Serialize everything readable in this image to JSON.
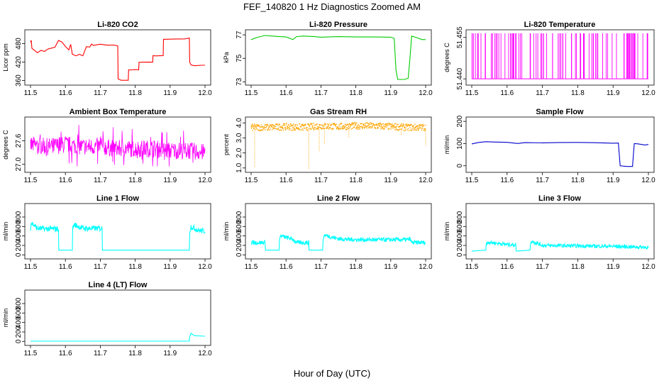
{
  "figure": {
    "title": "FEF_140820  1 Hz Diagnostics Zoomed AM",
    "xlabel": "Hour of Day (UTC)"
  },
  "chart_data": [
    {
      "type": "line",
      "title": "Li-820 CO2",
      "ylabel": "Licor ppm",
      "color": "#ff0000",
      "xlim": [
        11.5,
        12.0
      ],
      "ylim": [
        352,
        518
      ],
      "xticks": [
        "11.5",
        "11.6",
        "11.7",
        "11.8",
        "11.9",
        "12.0"
      ],
      "yticks": [
        {
          "v": 360,
          "label": "360"
        },
        {
          "v": 420,
          "label": "420"
        },
        {
          "v": 480,
          "label": "480"
        }
      ],
      "x": [
        11.5,
        11.502,
        11.504,
        11.51,
        11.52,
        11.53,
        11.54,
        11.55,
        11.56,
        11.57,
        11.58,
        11.59,
        11.6,
        11.61,
        11.615,
        11.62,
        11.63,
        11.64,
        11.65,
        11.66,
        11.67,
        11.675,
        11.68,
        11.7,
        11.72,
        11.74,
        11.75,
        11.751,
        11.76,
        11.78,
        11.781,
        11.79,
        11.8,
        11.81,
        11.811,
        11.82,
        11.84,
        11.85,
        11.851,
        11.86,
        11.87,
        11.88,
        11.881,
        11.9,
        11.92,
        11.94,
        11.955,
        11.956,
        11.96,
        11.97,
        11.99,
        12.0
      ],
      "values": [
        485,
        490,
        465,
        460,
        450,
        458,
        455,
        462,
        465,
        468,
        490,
        485,
        470,
        460,
        478,
        445,
        440,
        446,
        440,
        470,
        468,
        478,
        475,
        478,
        474,
        475,
        472,
        365,
        360,
        360,
        395,
        395,
        395,
        395,
        420,
        420,
        420,
        420,
        440,
        440,
        440,
        440,
        495,
        495,
        495,
        495,
        498,
        420,
        410,
        409,
        410,
        410
      ]
    },
    {
      "type": "line",
      "title": "Li-820 Pressure",
      "ylabel": "kPa",
      "color": "#00cc00",
      "xlim": [
        11.5,
        12.0
      ],
      "ylim": [
        72.9,
        77.25
      ],
      "xticks": [
        "11.5",
        "11.6",
        "11.7",
        "11.8",
        "11.9",
        "12.0"
      ],
      "yticks": [
        {
          "v": 73,
          "label": "73"
        },
        {
          "v": 75,
          "label": "75"
        },
        {
          "v": 77,
          "label": "77"
        }
      ],
      "x": [
        11.5,
        11.52,
        11.54,
        11.56,
        11.58,
        11.6,
        11.62,
        11.63,
        11.65,
        11.68,
        11.7,
        11.75,
        11.8,
        11.85,
        11.9,
        11.91,
        11.915,
        11.92,
        11.94,
        11.95,
        11.955,
        11.96,
        11.97,
        11.99,
        12.0
      ],
      "values": [
        76.6,
        76.8,
        76.95,
        76.9,
        76.85,
        76.82,
        76.6,
        76.85,
        76.9,
        76.85,
        76.8,
        76.85,
        76.82,
        76.82,
        76.8,
        76.7,
        74.0,
        73.2,
        73.2,
        73.3,
        75.0,
        76.9,
        76.8,
        76.6,
        76.6
      ]
    },
    {
      "type": "line",
      "title": "Li-820 Temperature",
      "ylabel": "degrees C",
      "color": "#ff00ff",
      "xlim": [
        11.5,
        12.0
      ],
      "ylim": [
        51.4385,
        51.457
      ],
      "xticks": [
        "11.5",
        "11.6",
        "11.7",
        "11.8",
        "11.9",
        "12.0"
      ],
      "yticks": [
        {
          "v": 51.44,
          "label": "51.440"
        },
        {
          "v": 51.455,
          "label": "51.455"
        }
      ],
      "x": [
        11.5,
        11.52,
        11.54,
        11.56,
        11.6,
        11.65,
        11.7,
        11.75,
        11.8,
        11.85,
        11.9,
        11.95,
        12.0
      ],
      "values": [
        51.44,
        51.44,
        51.44,
        51.44,
        51.44,
        51.44,
        51.44,
        51.44,
        51.44,
        51.44,
        51.44,
        51.44,
        51.44
      ],
      "spikes_top": 51.4565
    },
    {
      "type": "line",
      "title": "Ambient Box Temperature",
      "ylabel": "degrees C",
      "color": "#ff00ff",
      "xlim": [
        11.5,
        12.0
      ],
      "ylim": [
        26.85,
        28.15
      ],
      "xticks": [
        "11.5",
        "11.6",
        "11.7",
        "11.8",
        "11.9",
        "12.0"
      ],
      "yticks": [
        {
          "v": 27.0,
          "label": "27.0"
        },
        {
          "v": 27.6,
          "label": "27.6"
        }
      ],
      "x": [
        11.5,
        11.55,
        11.6,
        11.65,
        11.7,
        11.75,
        11.8,
        11.85,
        11.9,
        11.95,
        12.0
      ],
      "values": [
        27.5,
        27.45,
        27.5,
        27.45,
        27.45,
        27.4,
        27.4,
        27.4,
        27.35,
        27.35,
        27.3
      ],
      "noise_low": 26.95,
      "noise_high": 28.05
    },
    {
      "type": "scatter",
      "title": "Gas Stream RH",
      "ylabel": "percent",
      "color": "#ffa500",
      "xlim": [
        11.5,
        12.0
      ],
      "ylim": [
        0.85,
        4.25
      ],
      "xticks": [
        "11.5",
        "11.6",
        "11.7",
        "11.8",
        "11.9",
        "12.0"
      ],
      "yticks": [
        {
          "v": 1.0,
          "label": "1.0"
        },
        {
          "v": 2.0,
          "label": "2.0"
        },
        {
          "v": 3.0,
          "label": "3.0"
        },
        {
          "v": 4.0,
          "label": "4.0"
        }
      ],
      "x": [
        11.5,
        11.55,
        11.6,
        11.65,
        11.7,
        11.75,
        11.8,
        11.85,
        11.9,
        11.95,
        12.0
      ],
      "values": [
        3.7,
        3.7,
        3.75,
        3.7,
        3.8,
        3.75,
        3.8,
        3.8,
        3.75,
        3.7,
        3.7
      ],
      "dips_x": [
        11.51,
        11.665,
        11.695,
        11.71,
        11.78,
        11.93,
        12.0
      ],
      "dips_y": [
        1.0,
        0.9,
        2.1,
        2.6,
        3.0,
        3.2,
        2.5
      ]
    },
    {
      "type": "line",
      "title": "Sample Flow",
      "ylabel": "ml/min",
      "color": "#0000cc",
      "xlim": [
        11.5,
        12.0
      ],
      "ylim": [
        -20,
        210
      ],
      "xticks": [
        "11.5",
        "11.6",
        "11.7",
        "11.8",
        "11.9",
        "12.0"
      ],
      "yticks": [
        {
          "v": 0,
          "label": "0"
        },
        {
          "v": 100,
          "label": "100"
        },
        {
          "v": 200,
          "label": "200"
        }
      ],
      "x": [
        11.5,
        11.52,
        11.54,
        11.56,
        11.6,
        11.63,
        11.65,
        11.7,
        11.75,
        11.8,
        11.85,
        11.9,
        11.915,
        11.92,
        11.94,
        11.955,
        11.96,
        11.97,
        11.99,
        12.0
      ],
      "values": [
        100,
        105,
        108,
        106,
        105,
        100,
        105,
        103,
        104,
        104,
        104,
        103,
        102,
        0,
        -3,
        -3,
        100,
        98,
        95,
        97
      ]
    },
    {
      "type": "line",
      "title": "Line 1 Flow",
      "ylabel": "ml/min",
      "color": "#00ffff",
      "xlim": [
        11.5,
        12.0
      ],
      "ylim": [
        -40,
        1040
      ],
      "xticks": [
        "11.5",
        "11.6",
        "11.7",
        "11.8",
        "11.9",
        "12.0"
      ],
      "yticks": [
        {
          "v": 0,
          "label": "0"
        },
        {
          "v": 200,
          "label": "200"
        },
        {
          "v": 400,
          "label": "400"
        },
        {
          "v": 600,
          "label": "600"
        },
        {
          "v": 800,
          "label": "800"
        }
      ],
      "x": [
        11.5,
        11.502,
        11.52,
        11.54,
        11.57,
        11.58,
        11.581,
        11.62,
        11.621,
        11.625,
        11.65,
        11.7,
        11.705,
        11.706,
        11.8,
        11.9,
        11.95,
        11.955,
        11.956,
        11.96,
        11.98,
        12.0
      ],
      "values": [
        560,
        680,
        560,
        550,
        550,
        550,
        100,
        100,
        560,
        640,
        560,
        560,
        560,
        100,
        100,
        100,
        100,
        100,
        500,
        600,
        520,
        500
      ],
      "noise": 60
    },
    {
      "type": "line",
      "title": "Line 2 Flow",
      "ylabel": "ml/min",
      "color": "#00ffff",
      "xlim": [
        11.5,
        12.0
      ],
      "ylim": [
        -40,
        1040
      ],
      "xticks": [
        "11.5",
        "11.6",
        "11.7",
        "11.8",
        "11.9",
        "12.0"
      ],
      "yticks": [
        {
          "v": 0,
          "label": "0"
        },
        {
          "v": 200,
          "label": "200"
        },
        {
          "v": 400,
          "label": "400"
        },
        {
          "v": 600,
          "label": "600"
        },
        {
          "v": 800,
          "label": "800"
        }
      ],
      "x": [
        11.5,
        11.54,
        11.541,
        11.58,
        11.581,
        11.585,
        11.62,
        11.63,
        11.66,
        11.665,
        11.666,
        11.705,
        11.706,
        11.71,
        11.75,
        11.8,
        11.85,
        11.9,
        11.95,
        11.955,
        11.96,
        12.0
      ],
      "values": [
        260,
        260,
        100,
        100,
        330,
        400,
        330,
        260,
        260,
        260,
        100,
        100,
        320,
        420,
        340,
        320,
        320,
        320,
        320,
        340,
        260,
        260
      ],
      "noise": 45
    },
    {
      "type": "line",
      "title": "Line 3 Flow",
      "ylabel": "ml/min",
      "color": "#00ffff",
      "xlim": [
        11.5,
        12.0
      ],
      "ylim": [
        -40,
        1040
      ],
      "xticks": [
        "11.5",
        "11.6",
        "11.7",
        "11.8",
        "11.9",
        "12.0"
      ],
      "yticks": [
        {
          "v": 0,
          "label": "0"
        },
        {
          "v": 200,
          "label": "200"
        },
        {
          "v": 400,
          "label": "400"
        },
        {
          "v": 600,
          "label": "600"
        },
        {
          "v": 800,
          "label": "800"
        }
      ],
      "x": [
        11.5,
        11.54,
        11.541,
        11.545,
        11.6,
        11.625,
        11.626,
        11.665,
        11.666,
        11.67,
        11.7,
        11.8,
        11.9,
        11.95,
        12.0
      ],
      "values": [
        80,
        100,
        210,
        270,
        220,
        210,
        80,
        100,
        220,
        290,
        200,
        190,
        180,
        170,
        160
      ],
      "noise": 40
    },
    {
      "type": "line",
      "title": "Line 4 (LT) Flow",
      "ylabel": "ml/min",
      "color": "#00ffff",
      "xlim": [
        11.5,
        12.0
      ],
      "ylim": [
        -40,
        1040
      ],
      "xticks": [
        "11.5",
        "11.6",
        "11.7",
        "11.8",
        "11.9",
        "12.0"
      ],
      "yticks": [
        {
          "v": 0,
          "label": "0"
        },
        {
          "v": 200,
          "label": "200"
        },
        {
          "v": 400,
          "label": "400"
        },
        {
          "v": 600,
          "label": "600"
        },
        {
          "v": 800,
          "label": "800"
        }
      ],
      "x": [
        11.5,
        11.6,
        11.7,
        11.8,
        11.9,
        11.955,
        11.956,
        11.96,
        11.97,
        12.0
      ],
      "values": [
        5,
        5,
        5,
        5,
        5,
        5,
        100,
        170,
        120,
        110
      ],
      "noise": 0
    }
  ]
}
